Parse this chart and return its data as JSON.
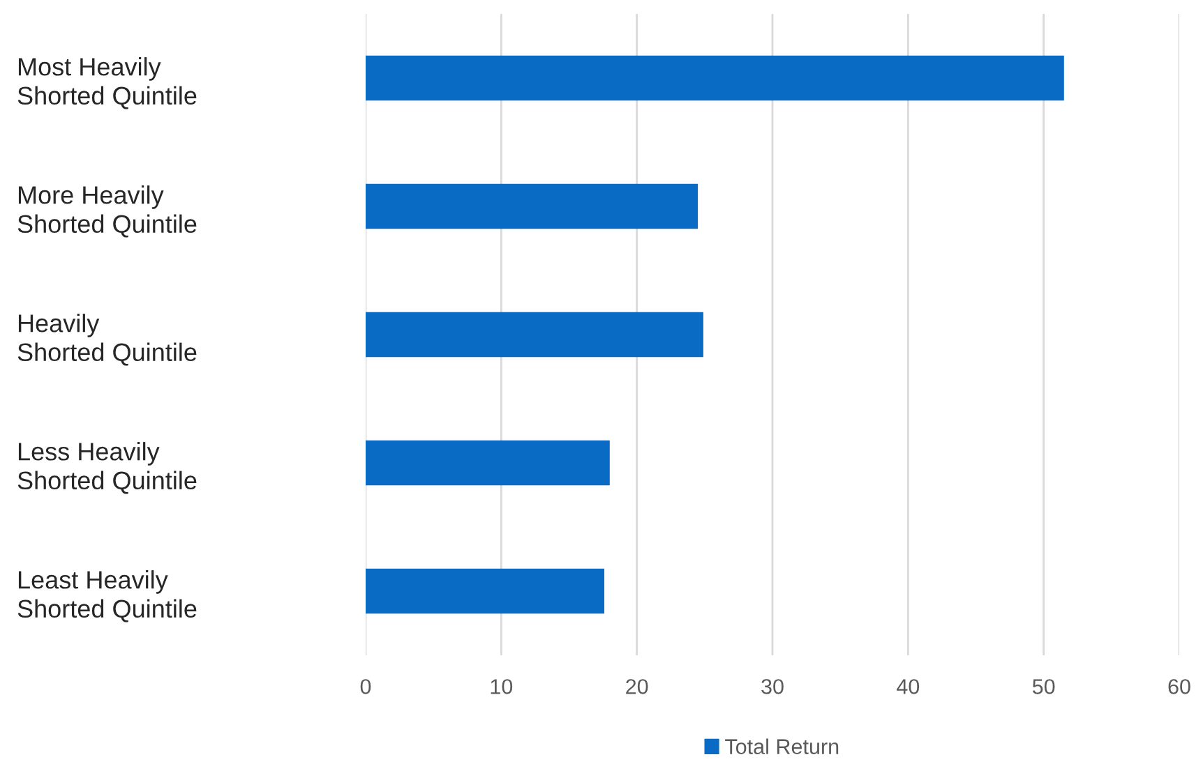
{
  "chart_data": {
    "type": "bar",
    "orientation": "horizontal",
    "categories": [
      "Most Heavily\nShorted Quintile",
      "More Heavily\nShorted Quintile",
      "Heavily\nShorted Quintile",
      "Less Heavily\nShorted Quintile",
      "Least Heavily\nShorted Quintile"
    ],
    "series": [
      {
        "name": "Total Return",
        "color": "#0a6bc4",
        "values": [
          51.5,
          24.5,
          24.9,
          18.0,
          17.6
        ]
      }
    ],
    "xlim": [
      0,
      60
    ],
    "xticks": [
      0,
      10,
      20,
      30,
      40,
      50,
      60
    ],
    "grid": "x",
    "legend": "bottom"
  }
}
